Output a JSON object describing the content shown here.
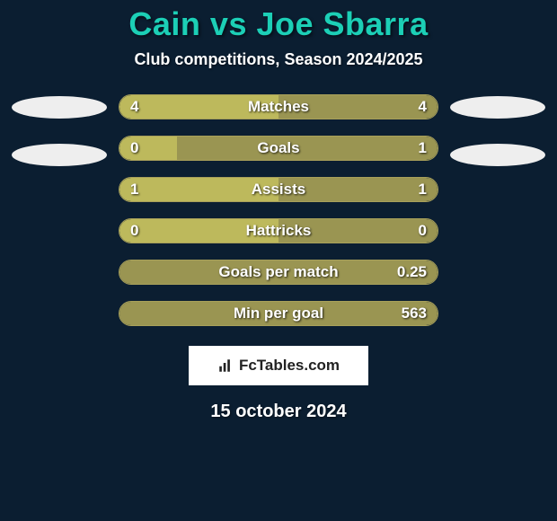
{
  "title_color": "#1ccfb6",
  "background_color": "#0b1e31",
  "bar_border_color": "#a8a05a",
  "fill_left_color": "#bdb95c",
  "fill_right_color": "#9a9552",
  "player1": "Cain",
  "vs_text": "vs",
  "player2": "Joe Sbarra",
  "subtitle": "Club competitions, Season 2024/2025",
  "discs_left": [
    "#eeeeee",
    "#eeeeee"
  ],
  "discs_right": [
    "#eeeeee",
    "#eeeeee"
  ],
  "stats": [
    {
      "label": "Matches",
      "left_val": "4",
      "right_val": "4",
      "left_fill_pct": 50,
      "right_fill_pct": 50
    },
    {
      "label": "Goals",
      "left_val": "0",
      "right_val": "1",
      "left_fill_pct": 18,
      "right_fill_pct": 82
    },
    {
      "label": "Assists",
      "left_val": "1",
      "right_val": "1",
      "left_fill_pct": 50,
      "right_fill_pct": 50
    },
    {
      "label": "Hattricks",
      "left_val": "0",
      "right_val": "0",
      "left_fill_pct": 50,
      "right_fill_pct": 50
    },
    {
      "label": "Goals per match",
      "left_val": "",
      "right_val": "0.25",
      "left_fill_pct": 0,
      "right_fill_pct": 100
    },
    {
      "label": "Min per goal",
      "left_val": "",
      "right_val": "563",
      "left_fill_pct": 0,
      "right_fill_pct": 100
    }
  ],
  "attribution_text": "FcTables.com",
  "date_text": "15 october 2024"
}
